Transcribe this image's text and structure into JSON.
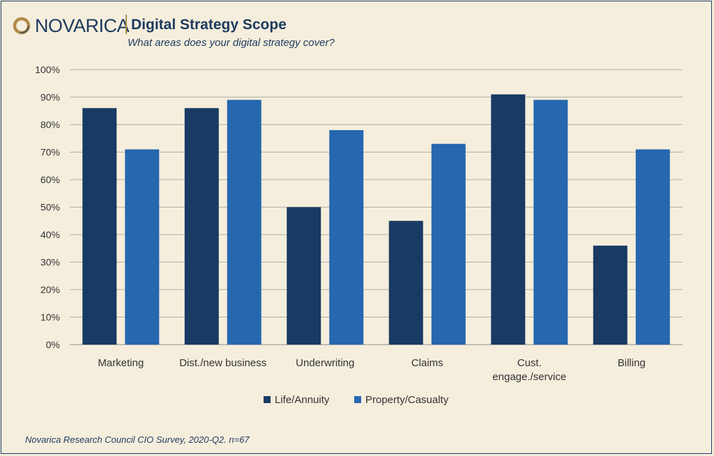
{
  "header": {
    "logo_text": "NOVARICA",
    "title": "Digital Strategy Scope",
    "subtitle": "What areas does your digital strategy cover?"
  },
  "footnote": "Novarica Research Council CIO Survey, 2020-Q2. n=67",
  "colors": {
    "life_annuity": "#183a63",
    "property_casualty": "#2667b0",
    "background": "#f5eedd",
    "text": "#1d3a5e",
    "accent": "#b08a4a"
  },
  "chart_data": {
    "type": "bar",
    "categories": [
      "Marketing",
      "Dist./new business",
      "Underwriting",
      "Claims",
      "Cust. engage./service",
      "Billing"
    ],
    "category_lines": [
      [
        "Marketing"
      ],
      [
        "Dist./new business"
      ],
      [
        "Underwriting"
      ],
      [
        "Claims"
      ],
      [
        "Cust.",
        "engage./service"
      ],
      [
        "Billing"
      ]
    ],
    "series": [
      {
        "name": "Life/Annuity",
        "values": [
          86,
          86,
          50,
          45,
          91,
          36
        ]
      },
      {
        "name": "Property/Casualty",
        "values": [
          71,
          89,
          78,
          73,
          89,
          71
        ]
      }
    ],
    "yticks": [
      "0%",
      "10%",
      "20%",
      "30%",
      "40%",
      "50%",
      "60%",
      "70%",
      "80%",
      "90%",
      "100%"
    ],
    "ylim": [
      0,
      100
    ],
    "grid": true,
    "legend": "bottom-center"
  }
}
